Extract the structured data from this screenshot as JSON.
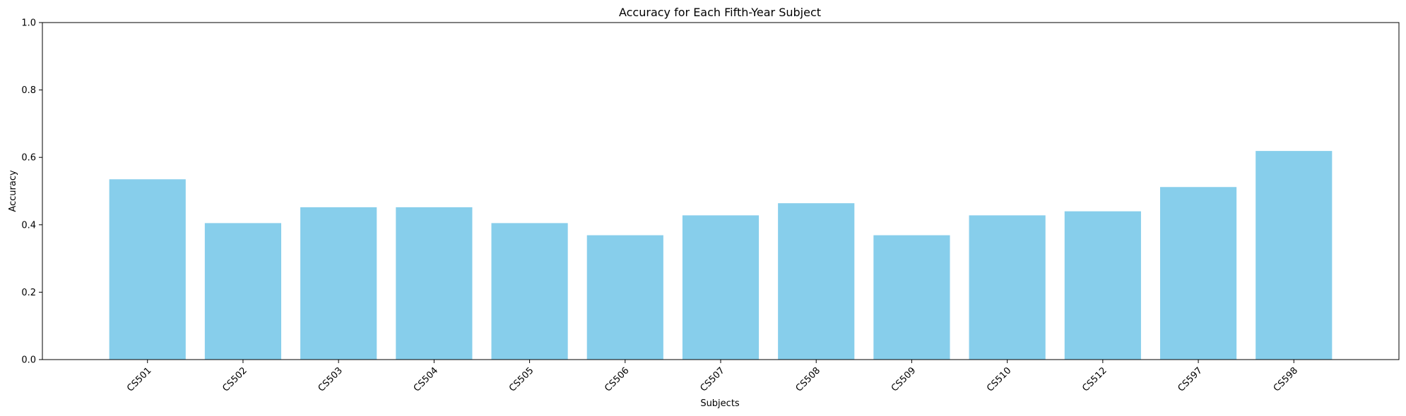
{
  "chart_data": {
    "type": "bar",
    "title": "Accuracy for Each Fifth-Year Subject",
    "xlabel": "Subjects",
    "ylabel": "Accuracy",
    "categories": [
      "CS501",
      "CS502",
      "CS503",
      "CS504",
      "CS505",
      "CS506",
      "CS507",
      "CS508",
      "CS509",
      "CS510",
      "CS512",
      "CS597",
      "CS598"
    ],
    "values": [
      0.535,
      0.405,
      0.452,
      0.452,
      0.405,
      0.369,
      0.428,
      0.464,
      0.369,
      0.428,
      0.44,
      0.512,
      0.619
    ],
    "ylim": [
      0,
      1.0
    ],
    "yticks": [
      "0.0",
      "0.2",
      "0.4",
      "0.6",
      "0.8",
      "1.0"
    ],
    "grid": false,
    "legend": "none",
    "bar_color": "#87ceeb"
  }
}
